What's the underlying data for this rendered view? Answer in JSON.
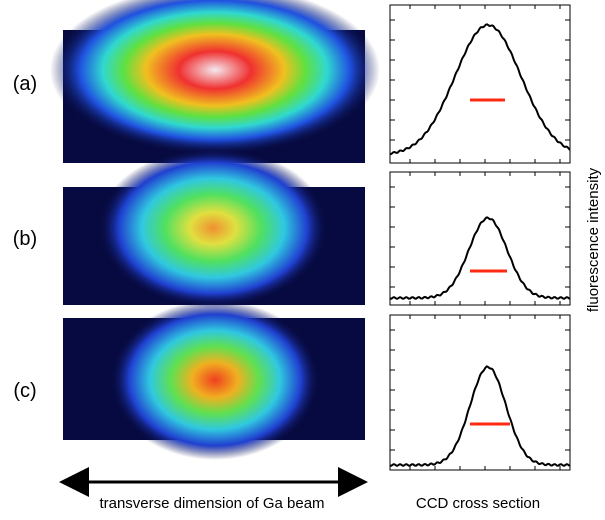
{
  "panels": [
    {
      "label": "(a)"
    },
    {
      "label": "(b)"
    },
    {
      "label": "(c)"
    }
  ],
  "x_caption": "transverse dimension of Ga beam",
  "profile_caption": "CCD cross section",
  "y_caption": "fluorescence intensity"
}
